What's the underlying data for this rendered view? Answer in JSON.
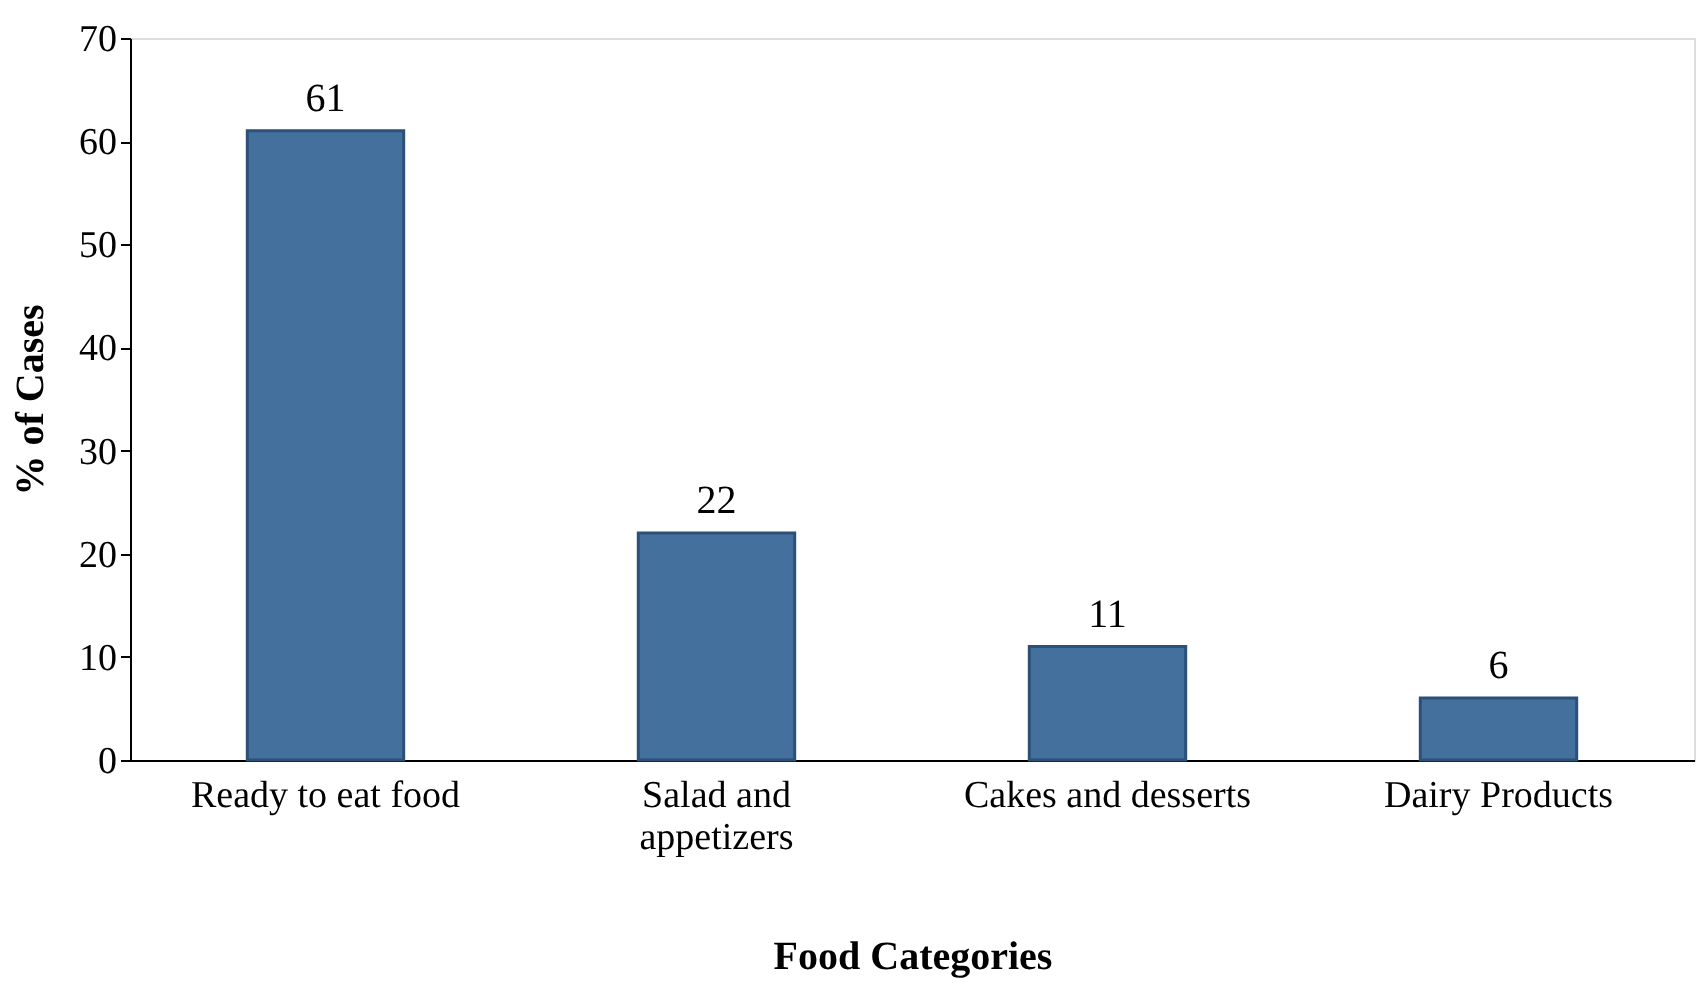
{
  "chart_data": {
    "type": "bar",
    "xlabel": "Food Categories",
    "ylabel": "% of Cases",
    "categories": [
      "Ready to eat food",
      "Salad and\nappetizers",
      "Cakes and desserts",
      "Dairy Products"
    ],
    "values": [
      61,
      22,
      11,
      6
    ],
    "color": "#44709e",
    "ylim": [
      0,
      70
    ],
    "yticks": [
      0,
      10,
      20,
      30,
      40,
      50,
      60,
      70
    ],
    "grid": false,
    "data_labels": true
  }
}
